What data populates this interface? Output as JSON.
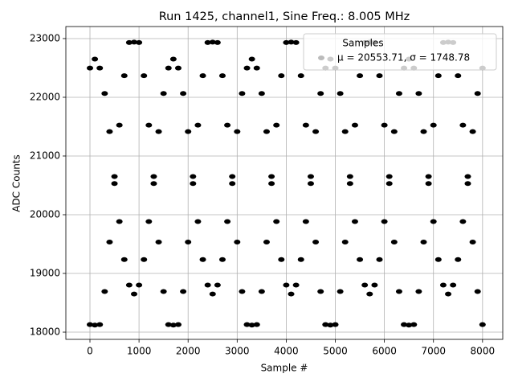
{
  "chart_data": {
    "type": "scatter",
    "title": "Run 1425, channel1, Sine Freq.: 8.005 MHz",
    "x_label": "Sample #",
    "y_label": "ADC Counts",
    "legend_title": "Samples",
    "legend": "upper right",
    "grid": true,
    "xlim": [
      -491,
      8412
    ],
    "xticks": [
      0,
      1000,
      2000,
      3000,
      4000,
      5000,
      6000,
      7000,
      8000
    ],
    "ylim": [
      17877,
      23205
    ],
    "yticks": [
      18000,
      19000,
      20000,
      21000,
      22000,
      23000
    ],
    "series": [
      {
        "name": "μ = 20553.71, σ = 1748.78",
        "color": "#000000",
        "legend_color": "#bbbbbb",
        "x": [
          0,
          100,
          200,
          300,
          400,
          500,
          600,
          700,
          800,
          900,
          1000,
          1100,
          1200,
          1300,
          1400,
          1500,
          1600,
          1700,
          1800,
          1900,
          2000,
          2100,
          2200,
          2300,
          2400,
          2500,
          2600,
          2700,
          2800,
          2900,
          3000,
          3100,
          3200,
          3300,
          3400,
          3500,
          3600,
          3700,
          3800,
          3900,
          4000,
          4100,
          4200,
          4300,
          4400,
          4500,
          4600,
          4700,
          4800,
          4900,
          5000,
          5100,
          5200,
          5300,
          5400,
          5500,
          5600,
          5700,
          5800,
          5900,
          6000,
          6100,
          6200,
          6300,
          6400,
          6500,
          6600,
          6700,
          6800,
          6900,
          7000,
          7100,
          7200,
          7300,
          7400,
          7500,
          7600,
          7700,
          7800,
          7900,
          8000,
          0,
          100,
          200,
          300,
          400,
          500,
          600,
          700,
          800,
          900,
          1000,
          1100,
          1200,
          1300,
          1400,
          1500,
          1600,
          1700,
          1800,
          1900,
          2000,
          2100,
          2200,
          2300,
          2400,
          2500,
          2600,
          2700,
          2800,
          2900,
          3000,
          3100,
          3200,
          3300,
          3400,
          3500,
          3600,
          3700,
          3800,
          3900,
          4000,
          4100,
          4200,
          4300,
          4400,
          4500,
          4600,
          4700,
          4800,
          4900,
          5000,
          5100,
          5200,
          5300,
          5400,
          5500,
          5600,
          5700,
          5800,
          5900,
          6000,
          6100,
          6200,
          6300,
          6400,
          6500,
          6600,
          6700,
          6800,
          6900,
          7000,
          7100,
          7200,
          7300,
          7400,
          7500,
          7600,
          7700,
          7800,
          7900,
          8000
        ],
        "values": [
          18128,
          18120,
          18128,
          18692,
          19534,
          20530,
          21526,
          22368,
          22932,
          22940,
          22932,
          22368,
          21526,
          20530,
          19534,
          18692,
          18128,
          18120,
          18128,
          18692,
          19534,
          20530,
          21526,
          22368,
          22932,
          22940,
          22932,
          22368,
          21526,
          20530,
          19534,
          18692,
          18128,
          18120,
          18128,
          18692,
          19534,
          20530,
          21526,
          22368,
          22932,
          22940,
          22932,
          22368,
          21526,
          20530,
          19534,
          18692,
          18128,
          18120,
          18128,
          18692,
          19534,
          20530,
          21526,
          22368,
          22932,
          22940,
          22932,
          22368,
          21526,
          20530,
          19534,
          18692,
          18128,
          18120,
          18128,
          18692,
          19534,
          20530,
          21526,
          22368,
          22932,
          22940,
          22932,
          22368,
          21526,
          20530,
          19534,
          18692,
          18128,
          22498,
          22650,
          22498,
          22064,
          21416,
          20650,
          19884,
          19236,
          18802,
          18650,
          18802,
          19236,
          19884,
          20650,
          21416,
          22064,
          22498,
          22650,
          22498,
          22064,
          21416,
          20650,
          19884,
          19236,
          18802,
          18650,
          18802,
          19236,
          19884,
          20650,
          21416,
          22064,
          22498,
          22650,
          22498,
          22064,
          21416,
          20650,
          19884,
          19236,
          18802,
          18650,
          18802,
          19236,
          19884,
          20650,
          21416,
          22064,
          22498,
          22650,
          22498,
          22064,
          21416,
          20650,
          19884,
          19236,
          18802,
          18650,
          18802,
          19236,
          19884,
          20650,
          21416,
          22064,
          22498,
          22650,
          22498,
          22064,
          21416,
          20650,
          19884,
          19236,
          18802,
          18650,
          18802,
          19236,
          19884,
          20650,
          21416,
          22064,
          22498
        ]
      }
    ]
  }
}
